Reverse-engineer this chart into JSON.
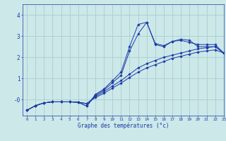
{
  "xlabel": "Graphe des températures (°c)",
  "bg_color": "#cce8e8",
  "line_color": "#1a3aaa",
  "grid_color": "#aacece",
  "ylim": [
    -0.75,
    4.5
  ],
  "xlim": [
    -0.5,
    23
  ],
  "yticks": [
    0,
    1,
    2,
    3,
    4
  ],
  "ytick_labels": [
    "-0",
    "1",
    "2",
    "3",
    "4"
  ],
  "xticks": [
    0,
    1,
    2,
    3,
    4,
    5,
    6,
    7,
    8,
    9,
    10,
    11,
    12,
    13,
    14,
    15,
    16,
    17,
    18,
    19,
    20,
    21,
    22,
    23
  ],
  "lines": [
    {
      "x": [
        0,
        1,
        2,
        3,
        4,
        5,
        6,
        7,
        8,
        9,
        10,
        11,
        12,
        13,
        14,
        15,
        16,
        17,
        18,
        19,
        20,
        21,
        22,
        23
      ],
      "y": [
        -0.5,
        -0.28,
        -0.15,
        -0.1,
        -0.1,
        -0.1,
        -0.12,
        -0.18,
        0.1,
        0.3,
        0.55,
        0.78,
        1.05,
        1.3,
        1.5,
        1.65,
        1.8,
        1.95,
        2.05,
        2.15,
        2.25,
        2.3,
        2.35,
        2.2
      ]
    },
    {
      "x": [
        0,
        1,
        2,
        3,
        4,
        5,
        6,
        7,
        8,
        9,
        10,
        11,
        12,
        13,
        14,
        15,
        16,
        17,
        18,
        19,
        20,
        21,
        22,
        23
      ],
      "y": [
        -0.5,
        -0.28,
        -0.15,
        -0.1,
        -0.1,
        -0.1,
        -0.12,
        -0.18,
        0.15,
        0.38,
        0.65,
        0.9,
        1.2,
        1.5,
        1.7,
        1.85,
        2.0,
        2.1,
        2.2,
        2.3,
        2.4,
        2.45,
        2.5,
        2.2
      ]
    },
    {
      "x": [
        0,
        1,
        2,
        3,
        4,
        5,
        6,
        7,
        8,
        9,
        10,
        11,
        12,
        13,
        14,
        15,
        16,
        17,
        18,
        19,
        20,
        21,
        22,
        23
      ],
      "y": [
        -0.5,
        -0.28,
        -0.15,
        -0.1,
        -0.1,
        -0.1,
        -0.12,
        -0.3,
        0.2,
        0.45,
        0.8,
        1.15,
        2.3,
        3.1,
        3.65,
        2.6,
        2.5,
        2.75,
        2.85,
        2.8,
        2.5,
        2.5,
        2.5,
        2.2
      ]
    },
    {
      "x": [
        0,
        1,
        2,
        3,
        4,
        5,
        6,
        7,
        8,
        9,
        10,
        11,
        12,
        13,
        14,
        15,
        16,
        17,
        18,
        19,
        20,
        21,
        22,
        23
      ],
      "y": [
        -0.5,
        -0.28,
        -0.15,
        -0.1,
        -0.1,
        -0.1,
        -0.12,
        -0.3,
        0.25,
        0.5,
        0.9,
        1.3,
        2.5,
        3.55,
        3.65,
        2.65,
        2.55,
        2.75,
        2.8,
        2.7,
        2.6,
        2.6,
        2.6,
        2.2
      ]
    }
  ]
}
